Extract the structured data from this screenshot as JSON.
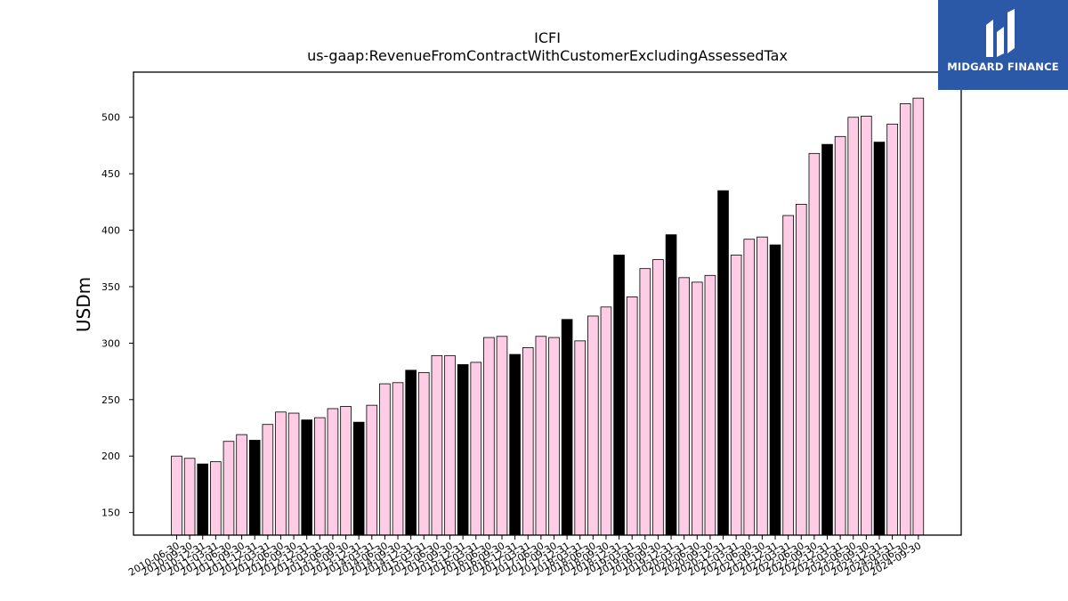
{
  "chart_data": {
    "type": "bar",
    "title": "ICFI",
    "subtitle": "us-gaap:RevenueFromContractWithCustomerExcludingAssessedTax",
    "xlabel": "",
    "ylabel": "USDm",
    "ylim": [
      130,
      540
    ],
    "yticks": [
      150,
      200,
      250,
      300,
      350,
      400,
      450,
      500
    ],
    "grid": false,
    "colors": {
      "quarter": "#ffcce6",
      "year_end": "#000000",
      "edge": "#000000"
    },
    "categories": [
      "2010-06-30",
      "2010-09-30",
      "2010-12-31",
      "2011-03-31",
      "2011-06-30",
      "2011-09-30",
      "2011-12-31",
      "2012-03-31",
      "2012-06-30",
      "2012-09-30",
      "2012-12-31",
      "2013-03-31",
      "2013-06-30",
      "2013-09-30",
      "2013-12-31",
      "2014-03-31",
      "2014-06-30",
      "2014-09-30",
      "2014-12-31",
      "2015-03-31",
      "2015-06-30",
      "2015-09-30",
      "2015-12-31",
      "2016-03-31",
      "2016-06-30",
      "2016-09-30",
      "2016-12-31",
      "2017-03-31",
      "2017-06-30",
      "2017-09-30",
      "2017-12-31",
      "2018-03-31",
      "2018-06-30",
      "2018-09-30",
      "2018-12-31",
      "2019-03-31",
      "2019-06-30",
      "2019-09-30",
      "2019-12-31",
      "2020-03-31",
      "2020-06-30",
      "2020-09-30",
      "2020-12-31",
      "2021-03-31",
      "2021-06-30",
      "2021-09-30",
      "2021-12-31",
      "2022-03-31",
      "2022-06-30",
      "2022-09-30",
      "2022-12-31",
      "2023-03-31",
      "2023-06-30",
      "2023-09-30",
      "2023-12-31",
      "2024-03-31",
      "2024-06-30",
      "2024-09-30"
    ],
    "values": [
      200,
      198,
      193,
      195,
      213,
      219,
      214,
      228,
      239,
      238,
      232,
      234,
      242,
      244,
      230,
      245,
      264,
      265,
      276,
      274,
      289,
      289,
      281,
      283,
      305,
      306,
      290,
      296,
      306,
      305,
      321,
      302,
      324,
      332,
      378,
      341,
      366,
      374,
      396,
      358,
      354,
      360,
      435,
      378,
      392,
      394,
      387,
      413,
      423,
      468,
      476,
      483,
      500,
      501,
      478,
      494,
      512,
      517
    ],
    "year_end": [
      false,
      false,
      true,
      false,
      false,
      false,
      true,
      false,
      false,
      false,
      true,
      false,
      false,
      false,
      true,
      false,
      false,
      false,
      true,
      false,
      false,
      false,
      true,
      false,
      false,
      false,
      true,
      false,
      false,
      false,
      true,
      false,
      false,
      false,
      true,
      false,
      false,
      false,
      true,
      false,
      false,
      false,
      true,
      false,
      false,
      false,
      true,
      false,
      false,
      false,
      true,
      false,
      false,
      false,
      true,
      false,
      false,
      false
    ]
  },
  "logo": {
    "text": "MIDGARD FINANCE"
  }
}
